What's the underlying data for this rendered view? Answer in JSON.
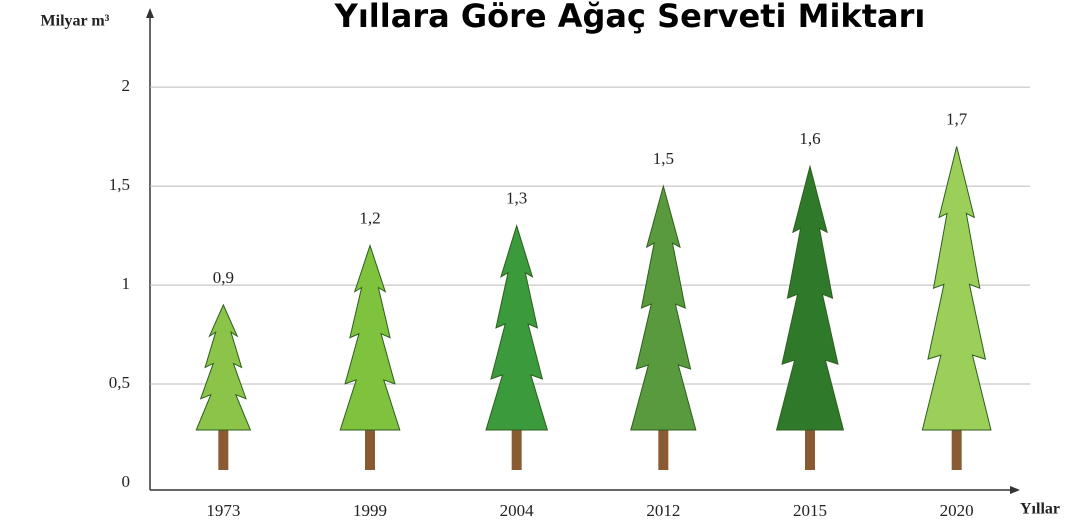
{
  "chart_data": {
    "type": "pictograph",
    "title": "Yıllara Göre Ağaç Serveti Miktarı",
    "y_label": "Milyar m³",
    "x_label": "Yıllar",
    "categories": [
      "1973",
      "1999",
      "2004",
      "2012",
      "2015",
      "2020"
    ],
    "values": [
      0.9,
      1.2,
      1.3,
      1.5,
      1.6,
      1.7
    ],
    "value_labels": [
      "0,9",
      "1,2",
      "1,3",
      "1,5",
      "1,6",
      "1,7"
    ],
    "colors": [
      "#8cc44a",
      "#7fc23d",
      "#3a9a3c",
      "#5a9a3e",
      "#2f7a2a",
      "#9ccf5a"
    ],
    "ylim": [
      0,
      2.4
    ],
    "yticks": [
      0,
      {
        "value": 0.5,
        "label": "0,5"
      },
      1,
      {
        "value": 1.5,
        "label": "1,5"
      },
      2
    ],
    "grid": true
  }
}
